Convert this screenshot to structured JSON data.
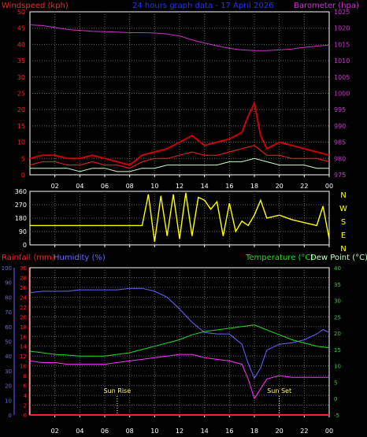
{
  "header": {
    "title": "24 hours graph data - 17 April 2026",
    "left_label": "Windspeed (kph)",
    "right_label": "Barometer (hpa)"
  },
  "colors": {
    "wind": "#ff2020",
    "gust": "#cc0000",
    "wind_avg": "#ccffcc",
    "barometer": "#cc33cc",
    "direction": "#ffff00",
    "humidity": "#6666ff",
    "temperature": "#22dd22",
    "dewpoint": "#ff33ff",
    "rainfall": "#ff2020",
    "axis": "#ffffff",
    "grid": "#666666",
    "title": "#2233ff"
  },
  "panel3_labels": {
    "rainfall": "Rainfall (mm)",
    "humidity": "Humidity (%)",
    "temperature": "Temperature (°C)",
    "dewpoint": "Dew Point (°C)",
    "sunrise": "Sun Rise",
    "sunset": "Sun Set"
  },
  "chart_data": [
    {
      "type": "line",
      "panel": "wind_barometer",
      "x_unit": "hour",
      "x_ticks": [
        "02",
        "04",
        "06",
        "08",
        "10",
        "12",
        "14",
        "16",
        "18",
        "20",
        "22",
        "00"
      ],
      "y_left_ticks": [
        "0",
        "5",
        "10",
        "15",
        "20",
        "25",
        "30",
        "35",
        "40",
        "45",
        "50"
      ],
      "y_left_range": [
        0,
        50
      ],
      "y_right_ticks": [
        "975",
        "980",
        "985",
        "990",
        "995",
        "1000",
        "1005",
        "1010",
        "1015",
        "1020",
        "1025"
      ],
      "y_right_range": [
        975,
        1025
      ],
      "series": [
        {
          "key": "gust",
          "x": [
            0,
            1,
            2,
            3,
            4,
            5,
            6,
            7,
            8,
            9,
            10,
            11,
            12,
            13,
            14,
            15,
            16,
            17,
            17.5,
            18,
            18.5,
            19,
            20,
            21,
            22,
            23,
            24
          ],
          "values": [
            5,
            6,
            6,
            5,
            5,
            6,
            5,
            4,
            3,
            6,
            7,
            8,
            10,
            12,
            9,
            10,
            11,
            13,
            18,
            22,
            12,
            8,
            10,
            9,
            8,
            7,
            6
          ]
        },
        {
          "key": "wind",
          "x": [
            0,
            1,
            2,
            3,
            4,
            5,
            6,
            7,
            8,
            9,
            10,
            11,
            12,
            13,
            14,
            15,
            16,
            17,
            18,
            19,
            20,
            21,
            22,
            23,
            24
          ],
          "values": [
            3,
            4,
            4,
            3,
            3,
            4,
            3,
            3,
            2,
            4,
            5,
            5,
            6,
            7,
            6,
            6,
            7,
            8,
            9,
            6,
            6,
            5,
            5,
            5,
            4
          ]
        },
        {
          "key": "wind_avg",
          "x": [
            0,
            1,
            2,
            3,
            4,
            5,
            6,
            7,
            8,
            9,
            10,
            11,
            12,
            13,
            14,
            15,
            16,
            17,
            18,
            19,
            20,
            21,
            22,
            23,
            24
          ],
          "values": [
            2,
            2,
            2,
            2,
            1,
            2,
            2,
            1,
            1,
            2,
            2,
            3,
            3,
            3,
            3,
            3,
            4,
            4,
            5,
            4,
            3,
            3,
            3,
            2,
            2
          ]
        },
        {
          "key": "barometer",
          "x": [
            0,
            1,
            2,
            3,
            4,
            5,
            6,
            7,
            8,
            9,
            10,
            11,
            12,
            13,
            14,
            15,
            16,
            17,
            18,
            19,
            20,
            21,
            22,
            23,
            24
          ],
          "values": [
            1021,
            1020.8,
            1020.2,
            1019.6,
            1019.3,
            1019.0,
            1018.9,
            1018.8,
            1018.6,
            1018.6,
            1018.5,
            1018.2,
            1017.6,
            1016.4,
            1015.4,
            1014.6,
            1013.8,
            1013.3,
            1013.1,
            1013.1,
            1013.3,
            1013.6,
            1014.1,
            1014.5,
            1014.8
          ]
        }
      ]
    },
    {
      "type": "line",
      "panel": "wind_direction",
      "x_unit": "hour",
      "y_left_ticks": [
        "0",
        "90",
        "180",
        "270",
        "360"
      ],
      "y_left_range": [
        0,
        360
      ],
      "y_right_ticks": [
        "N",
        "W",
        "S",
        "E",
        "N"
      ],
      "series": [
        {
          "key": "direction",
          "x": [
            0,
            8,
            9,
            9.5,
            10,
            10.5,
            11,
            11.5,
            12,
            12.5,
            13,
            13.5,
            14,
            14.5,
            15,
            15.5,
            16,
            16.5,
            17,
            17.5,
            18,
            18.5,
            19,
            20,
            21,
            22,
            23,
            23.5,
            24
          ],
          "values": [
            130,
            130,
            130,
            340,
            20,
            330,
            60,
            340,
            40,
            350,
            60,
            320,
            300,
            240,
            290,
            60,
            280,
            90,
            160,
            130,
            200,
            300,
            180,
            200,
            170,
            150,
            130,
            260,
            40
          ]
        }
      ]
    },
    {
      "type": "line",
      "panel": "climate",
      "x_unit": "hour",
      "y_rain_ticks": [
        "0",
        "2",
        "4",
        "6",
        "8",
        "10",
        "12",
        "14",
        "16",
        "18",
        "20",
        "22",
        "24",
        "26",
        "28",
        "30"
      ],
      "y_rain_range": [
        0,
        30
      ],
      "y_hum_ticks": [
        "0",
        "10",
        "20",
        "30",
        "40",
        "50",
        "60",
        "70",
        "80",
        "90",
        "100"
      ],
      "y_hum_range": [
        0,
        100
      ],
      "y_temp_ticks": [
        "-5",
        "0",
        "5",
        "10",
        "15",
        "20",
        "25",
        "30",
        "35",
        "40"
      ],
      "y_temp_range": [
        -5,
        40
      ],
      "series": [
        {
          "key": "humidity",
          "x": [
            0,
            1,
            2,
            3,
            4,
            5,
            6,
            7,
            8,
            9,
            10,
            11,
            12,
            13,
            14,
            15,
            16,
            17,
            17.5,
            18,
            18.5,
            19,
            20,
            21,
            22,
            23,
            23.5,
            24
          ],
          "values": [
            83,
            84,
            84,
            84,
            85,
            85,
            85,
            85,
            86,
            86,
            84,
            80,
            72,
            63,
            56,
            55,
            55,
            48,
            35,
            25,
            32,
            44,
            48,
            49,
            51,
            55,
            58,
            56
          ]
        },
        {
          "key": "temperature",
          "x": [
            0,
            1,
            2,
            3,
            4,
            5,
            6,
            7,
            8,
            9,
            10,
            11,
            12,
            13,
            14,
            15,
            16,
            17,
            18,
            19,
            20,
            21,
            22,
            23,
            24
          ],
          "values": [
            14.5,
            14,
            13.5,
            13.3,
            13,
            13,
            13,
            13.5,
            14,
            15,
            16,
            17,
            18,
            19.5,
            20.5,
            21,
            21.5,
            22,
            22.5,
            21,
            19.5,
            18,
            17,
            16,
            15.5
          ]
        },
        {
          "key": "dewpoint",
          "x": [
            0,
            1,
            2,
            3,
            4,
            5,
            6,
            7,
            8,
            9,
            10,
            11,
            12,
            13,
            14,
            15,
            16,
            17,
            17.5,
            18,
            18.5,
            19,
            20,
            21,
            22,
            23,
            24
          ],
          "values": [
            11.5,
            11,
            11,
            10.5,
            10.5,
            10.5,
            10.5,
            11,
            11.5,
            12,
            12.5,
            13,
            13.5,
            13.5,
            12.5,
            12,
            11.5,
            10.5,
            6,
            0,
            3,
            6,
            7,
            6.5,
            6.5,
            6.5,
            6.5
          ]
        },
        {
          "key": "rainfall",
          "x": [
            0,
            24
          ],
          "values": [
            0,
            0
          ]
        }
      ],
      "events": [
        {
          "key": "sunrise",
          "hour": 7
        },
        {
          "key": "sunset",
          "hour": 20
        }
      ]
    }
  ]
}
